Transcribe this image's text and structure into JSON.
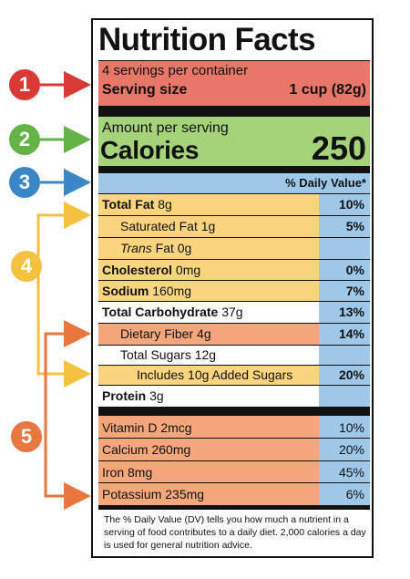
{
  "colors": {
    "red": "#e8776a",
    "red_badge": "#d93a35",
    "green": "#a4d37a",
    "green_badge": "#64b346",
    "blue": "#9ec7e8",
    "blue_badge": "#3b86c6",
    "yellow": "#fbd57e",
    "yellow_badge": "#f4c240",
    "orange": "#f4a77b",
    "orange_badge": "#e8773f"
  },
  "badges": [
    "1",
    "2",
    "3",
    "4",
    "5"
  ],
  "label": {
    "title": "Nutrition Facts",
    "servings": "4 servings per container",
    "serving_size_label": "Serving size",
    "serving_size_value": "1 cup (82g)",
    "amount_per_serving": "Amount per serving",
    "calories_label": "Calories",
    "calories_value": "250",
    "dv_header": "% Daily Value*",
    "rows": [
      {
        "name": "Total Fat",
        "amount": "8g",
        "dv": "10%"
      },
      {
        "name": "Saturated Fat",
        "amount": "1g",
        "dv": "5%"
      },
      {
        "name": "Trans",
        "amount": "Fat 0g",
        "dv": ""
      },
      {
        "name": "Cholesterol",
        "amount": "0mg",
        "dv": "0%"
      },
      {
        "name": "Sodium",
        "amount": "160mg",
        "dv": "7%"
      },
      {
        "name": "Total Carbohydrate",
        "amount": "37g",
        "dv": "13%"
      },
      {
        "name": "Dietary Fiber",
        "amount": "4g",
        "dv": "14%"
      },
      {
        "name": "Total Sugars",
        "amount": "12g",
        "dv": ""
      },
      {
        "name": "Includes 10g Added Sugars",
        "amount": "",
        "dv": "20%"
      },
      {
        "name": "Protein",
        "amount": "3g",
        "dv": ""
      }
    ],
    "vitamins": [
      {
        "name": "Vitamin D 2mcg",
        "dv": "10%"
      },
      {
        "name": "Calcium 260mg",
        "dv": "20%"
      },
      {
        "name": "Iron 8mg",
        "dv": "45%"
      },
      {
        "name": "Potassium 235mg",
        "dv": "6%"
      }
    ],
    "footnote": "The % Daily Value (DV) tells you how much a nutrient in a serving of food contributes to a daily diet. 2,000 calories a day is used for general nutrition advice."
  }
}
